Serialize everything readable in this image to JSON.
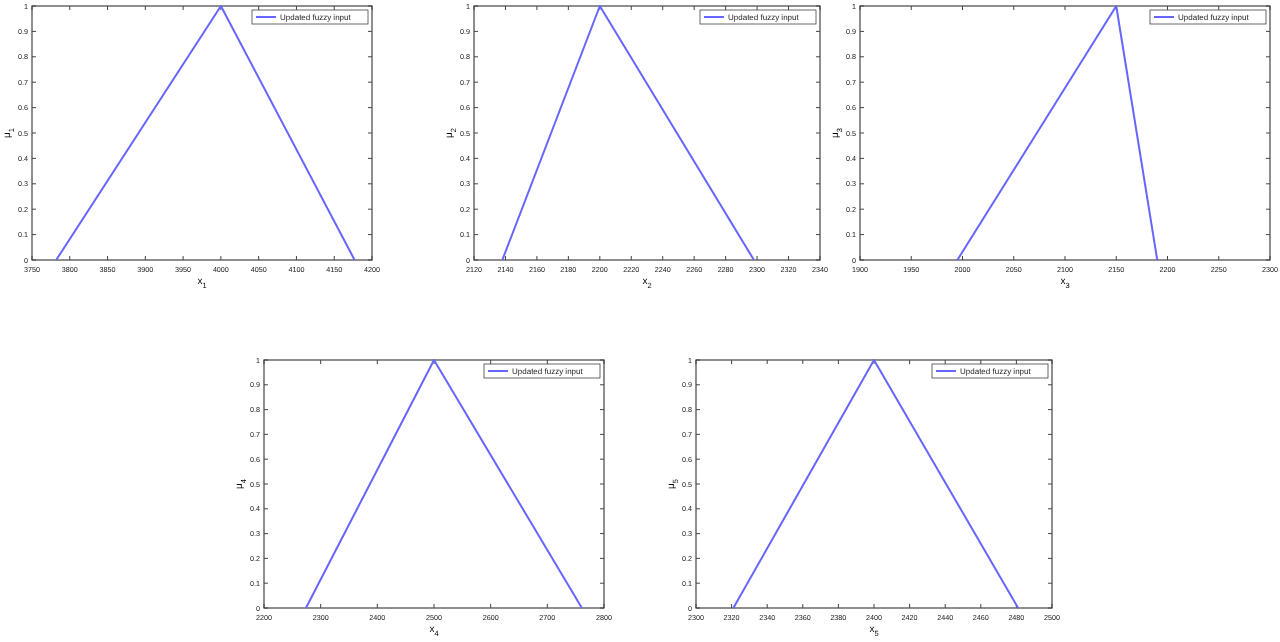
{
  "chart_data": [
    {
      "type": "line",
      "xlabel": "x$_{1}$",
      "ylabel": "μ$_{1}$",
      "x": [
        3782,
        4000,
        4177
      ],
      "series": [
        {
          "name": "Updated fuzzy input",
          "color": "#6666ff",
          "values": [
            0,
            1,
            0
          ]
        }
      ],
      "xlim": [
        3750,
        4200
      ],
      "xticks": [
        3750,
        3800,
        3850,
        3900,
        3950,
        4000,
        4050,
        4100,
        4150,
        4200
      ],
      "ylim": [
        0,
        1
      ],
      "yticks": [
        0,
        0.1,
        0.2,
        0.3,
        0.4,
        0.5,
        0.6,
        0.7,
        0.8,
        0.9,
        1
      ],
      "legend": "top right",
      "grid": false
    },
    {
      "type": "line",
      "xlabel": "x$_{2}$",
      "ylabel": "μ$_{2}$",
      "x": [
        2138,
        2200,
        2298
      ],
      "series": [
        {
          "name": "Updated fuzzy input",
          "color": "#6666ff",
          "values": [
            0,
            1,
            0
          ]
        }
      ],
      "xlim": [
        2120,
        2340
      ],
      "xticks": [
        2120,
        2140,
        2160,
        2180,
        2200,
        2220,
        2240,
        2260,
        2280,
        2300,
        2320,
        2340
      ],
      "ylim": [
        0,
        1
      ],
      "yticks": [
        0,
        0.1,
        0.2,
        0.3,
        0.4,
        0.5,
        0.6,
        0.7,
        0.8,
        0.9,
        1
      ],
      "legend": "top right",
      "grid": false
    },
    {
      "type": "line",
      "xlabel": "x$_{3}$",
      "ylabel": "μ$_{3}$",
      "x": [
        1995,
        2150,
        2190
      ],
      "series": [
        {
          "name": "Updated fuzzy input",
          "color": "#6666ff",
          "values": [
            0,
            1,
            0
          ]
        }
      ],
      "xlim": [
        1900,
        2300
      ],
      "xticks": [
        1900,
        1950,
        2000,
        2050,
        2100,
        2150,
        2200,
        2250,
        2300
      ],
      "ylim": [
        0,
        1
      ],
      "yticks": [
        0,
        0.1,
        0.2,
        0.3,
        0.4,
        0.5,
        0.6,
        0.7,
        0.8,
        0.9,
        1
      ],
      "legend": "top right",
      "grid": false
    },
    {
      "type": "line",
      "xlabel": "x$_{4}$",
      "ylabel": "μ$_{4}$",
      "x": [
        2274,
        2500,
        2761
      ],
      "series": [
        {
          "name": "Updated fuzzy input",
          "color": "#6666ff",
          "values": [
            0,
            1,
            0
          ]
        }
      ],
      "xlim": [
        2200,
        2800
      ],
      "xticks": [
        2200,
        2300,
        2400,
        2500,
        2600,
        2700,
        2800
      ],
      "ylim": [
        0,
        1
      ],
      "yticks": [
        0,
        0.1,
        0.2,
        0.3,
        0.4,
        0.5,
        0.6,
        0.7,
        0.8,
        0.9,
        1
      ],
      "legend": "top right",
      "grid": false
    },
    {
      "type": "line",
      "xlabel": "x$_{5}$",
      "ylabel": "μ$_{5}$",
      "x": [
        2321,
        2400,
        2481
      ],
      "series": [
        {
          "name": "Updated fuzzy input",
          "color": "#6666ff",
          "values": [
            0,
            1,
            0
          ]
        }
      ],
      "xlim": [
        2300,
        2500
      ],
      "xticks": [
        2300,
        2320,
        2340,
        2360,
        2380,
        2400,
        2420,
        2440,
        2460,
        2480,
        2500
      ],
      "ylim": [
        0,
        1
      ],
      "yticks": [
        0,
        0.1,
        0.2,
        0.3,
        0.4,
        0.5,
        0.6,
        0.7,
        0.8,
        0.9,
        1
      ],
      "legend": "top right",
      "grid": false
    }
  ]
}
